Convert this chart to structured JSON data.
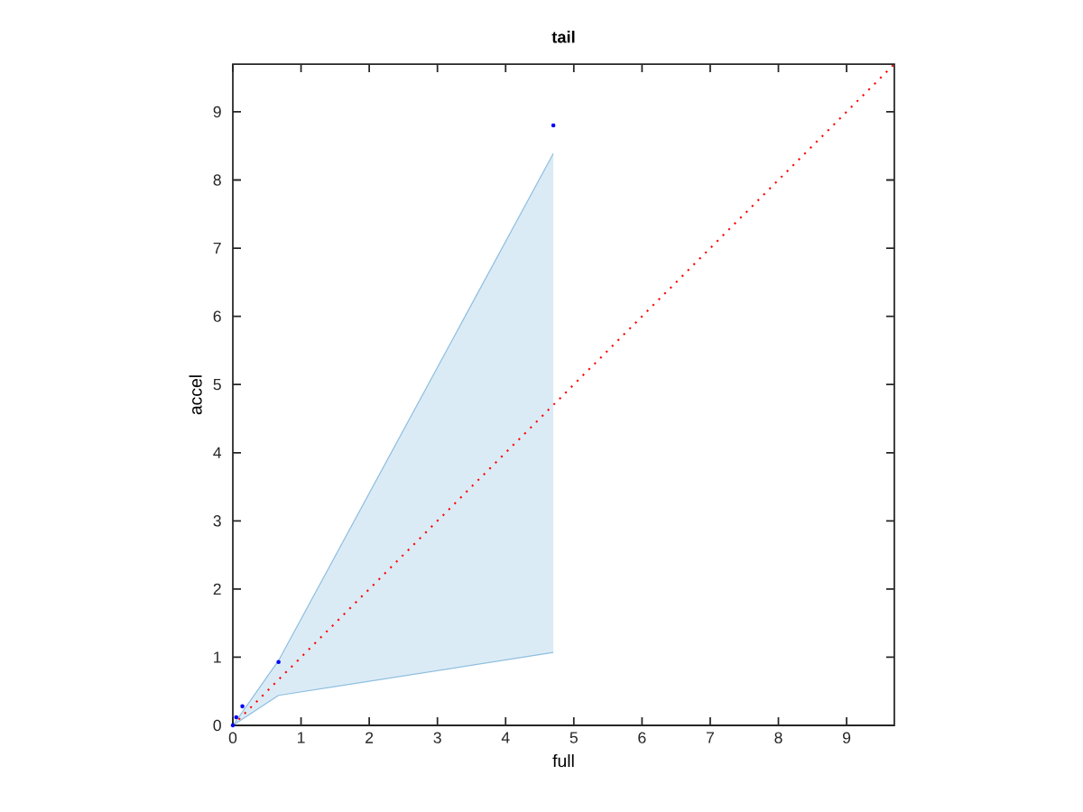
{
  "chart_data": {
    "type": "scatter",
    "title": "tail",
    "xlabel": "full",
    "ylabel": "accel",
    "xlim": [
      0,
      9.7
    ],
    "ylim": [
      0,
      9.7
    ],
    "xticks": [
      0,
      1,
      2,
      3,
      4,
      5,
      6,
      7,
      8,
      9
    ],
    "yticks": [
      0,
      1,
      2,
      3,
      4,
      5,
      6,
      7,
      8,
      9
    ],
    "grid": false,
    "series": [
      {
        "type": "area",
        "color": "#8ebfe0",
        "x": [
          0,
          0.67,
          4.7
        ],
        "values": [
          null,
          null,
          null
        ],
        "lower": [
          0,
          0.44,
          1.07
        ],
        "upper": [
          0,
          0.95,
          8.39
        ]
      },
      {
        "type": "line",
        "color": "#ff0000",
        "line_style": "dotted",
        "marker": "none",
        "x": [
          0,
          9.7
        ],
        "values": [
          0,
          9.7
        ]
      },
      {
        "color": "#0000ff",
        "marker": "circle",
        "x": [
          0,
          0.05,
          0.14,
          0.67,
          4.7
        ],
        "values": [
          0,
          0.12,
          0.28,
          0.93,
          8.8
        ]
      }
    ]
  }
}
